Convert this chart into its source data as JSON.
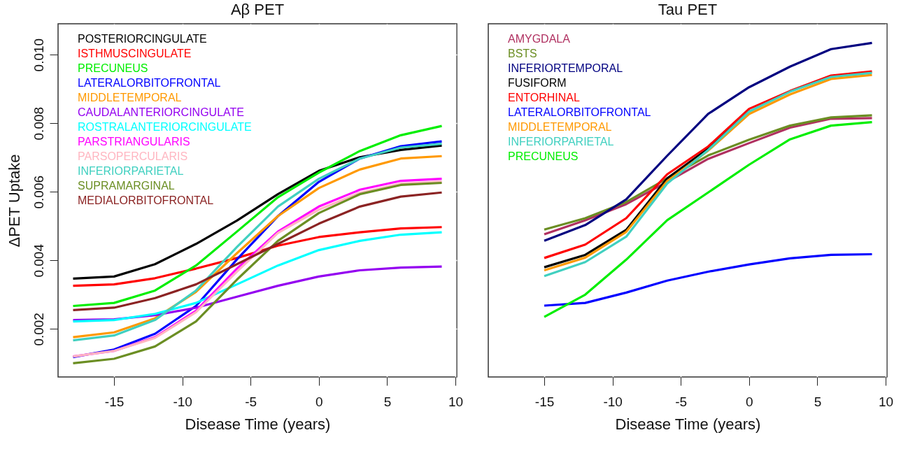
{
  "chart_data": [
    {
      "type": "line",
      "title": "Aβ PET",
      "xlabel": "Disease Time (years)",
      "ylabel": "ΔPET Uptake",
      "xlim": [
        -19.1,
        10.1
      ],
      "ylim": [
        0.0006,
        0.0109
      ],
      "xticks": [
        -15,
        -10,
        -5,
        0,
        5,
        10
      ],
      "yticks": [
        0.002,
        0.004,
        0.006,
        0.008,
        {
          "value": 0.01,
          "label": "0.010"
        }
      ],
      "grid": true,
      "legend": "top left",
      "line_style": "solid",
      "marker": "none",
      "x": [
        -18,
        -15,
        -12,
        -9,
        -6,
        -3,
        0,
        3,
        6,
        9
      ],
      "series": [
        {
          "name": "POSTERIORCINGULATE",
          "color": "#000000",
          "values": [
            0.00347,
            0.00353,
            0.00389,
            0.00448,
            0.00516,
            0.00593,
            0.00661,
            0.00701,
            0.00722,
            0.00735
          ]
        },
        {
          "name": "ISTHMUSCINGULATE",
          "color": "#ff0000",
          "values": [
            0.00326,
            0.0033,
            0.00348,
            0.00376,
            0.00407,
            0.00443,
            0.00468,
            0.00482,
            0.00493,
            0.00497
          ]
        },
        {
          "name": "PRECUNEUS",
          "color": "#00ee00",
          "values": [
            0.00267,
            0.00276,
            0.00312,
            0.00385,
            0.00484,
            0.00584,
            0.00656,
            0.00719,
            0.00765,
            0.00792
          ]
        },
        {
          "name": "LATERALORBITOFRONTAL",
          "color": "#0000ff",
          "values": [
            0.00118,
            0.0014,
            0.00186,
            0.00267,
            0.00403,
            0.00529,
            0.00629,
            0.00697,
            0.00733,
            0.00747
          ]
        },
        {
          "name": "MIDDLETEMPORAL",
          "color": "#ff9900",
          "values": [
            0.00176,
            0.0019,
            0.00231,
            0.00308,
            0.00421,
            0.00529,
            0.00611,
            0.00665,
            0.00697,
            0.00704
          ]
        },
        {
          "name": "CAUDALANTERIORCINGULATE",
          "color": "#9400f0",
          "values": [
            0.00226,
            0.00228,
            0.0024,
            0.00262,
            0.00294,
            0.00326,
            0.00353,
            0.00371,
            0.00379,
            0.00382
          ]
        },
        {
          "name": "ROSTRALANTERIORCINGULATE",
          "color": "#00ffff",
          "values": [
            0.00222,
            0.00226,
            0.00244,
            0.00276,
            0.0033,
            0.00385,
            0.0043,
            0.00457,
            0.00475,
            0.00482
          ]
        },
        {
          "name": "PARSTRIANGULARIS",
          "color": "#ff00ff",
          "values": [
            0.0012,
            0.00136,
            0.00176,
            0.00253,
            0.00376,
            0.00484,
            0.00557,
            0.00606,
            0.00632,
            0.00638
          ]
        },
        {
          "name": "PARSOPERCULARIS",
          "color": "#ffb6c1",
          "values": [
            0.0012,
            0.00136,
            0.00174,
            0.00249,
            0.00367,
            0.0048,
            0.00548,
            0.00597,
            0.00624,
            0.0063
          ]
        },
        {
          "name": "INFERIORPARIETAL",
          "color": "#40d0c0",
          "values": [
            0.00167,
            0.00181,
            0.00226,
            0.00312,
            0.00439,
            0.00557,
            0.00638,
            0.00697,
            0.00729,
            0.0074
          ]
        },
        {
          "name": "SUPRAMARGINAL",
          "color": "#6b8e23",
          "values": [
            0.001,
            0.00113,
            0.00149,
            0.00222,
            0.00344,
            0.00457,
            0.00538,
            0.00593,
            0.0062,
            0.00626
          ]
        },
        {
          "name": "MEDIALORBITOFRONTAL",
          "color": "#8b2323",
          "values": [
            0.00255,
            0.00262,
            0.0029,
            0.0033,
            0.00389,
            0.00448,
            0.00507,
            0.00557,
            0.00586,
            0.00598
          ]
        }
      ]
    },
    {
      "type": "line",
      "title": "Tau PET",
      "xlabel": "Disease Time (years)",
      "xlim": [
        -19.1,
        10.1
      ],
      "ylim": [
        0.0006,
        0.0109
      ],
      "xticks": [
        -15,
        -10,
        -5,
        0,
        5,
        10
      ],
      "tick_labels": "x",
      "grid": true,
      "legend": "top left",
      "line_style": "solid",
      "marker": "none",
      "x": [
        -15,
        -12,
        -9,
        -6,
        -3,
        0,
        3,
        6,
        9
      ],
      "series": [
        {
          "name": "AMYGDALA",
          "color": "#b03060",
          "values": [
            0.00476,
            0.00517,
            0.00564,
            0.00629,
            0.00696,
            0.00742,
            0.00787,
            0.00813,
            0.00815
          ]
        },
        {
          "name": "BSTS",
          "color": "#6b8e23",
          "values": [
            0.0049,
            0.00523,
            0.0057,
            0.00639,
            0.00706,
            0.00752,
            0.00793,
            0.00817,
            0.00823
          ]
        },
        {
          "name": "INFERIORTEMPORAL",
          "color": "#000080",
          "values": [
            0.00457,
            0.00503,
            0.00578,
            0.00705,
            0.00827,
            0.00905,
            0.00965,
            0.01016,
            0.01034
          ]
        },
        {
          "name": "FUSIFORM",
          "color": "#000000",
          "values": [
            0.0038,
            0.00416,
            0.00489,
            0.00639,
            0.00726,
            0.0084,
            null,
            null,
            null
          ]
        },
        {
          "name": "ENTORHINAL",
          "color": "#ff0000",
          "values": [
            0.00407,
            0.00446,
            0.00523,
            0.00651,
            0.00732,
            0.00842,
            0.00894,
            0.00939,
            0.00951
          ]
        },
        {
          "name": "LATERALORBITOFRONTAL",
          "color": "#0000ff",
          "values": [
            0.00268,
            0.00276,
            0.00306,
            0.00341,
            0.00367,
            0.00388,
            0.00406,
            0.00416,
            0.00418
          ]
        },
        {
          "name": "MIDDLETEMPORAL",
          "color": "#ff9900",
          "values": [
            0.00371,
            0.00408,
            0.00483,
            0.00631,
            0.0072,
            0.00827,
            0.00884,
            0.00929,
            0.00941
          ]
        },
        {
          "name": "INFERIORPARIETAL",
          "color": "#40d0c0",
          "values": [
            0.00354,
            0.00395,
            0.00469,
            0.00624,
            0.00722,
            0.00834,
            0.00892,
            0.00935,
            0.00947
          ]
        },
        {
          "name": "PRECUNEUS",
          "color": "#00ee00",
          "values": [
            0.00235,
            0.003,
            0.00402,
            0.00517,
            0.00598,
            0.00679,
            0.00753,
            0.00793,
            0.00803
          ]
        }
      ]
    }
  ]
}
